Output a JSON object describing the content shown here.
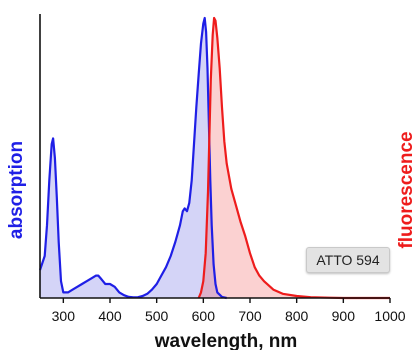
{
  "chart_data": {
    "type": "area",
    "title": "",
    "xlabel": "wavelength, nm",
    "ylabel_left": "absorption",
    "ylabel_right": "fluorescence",
    "xlim": [
      250,
      1000
    ],
    "ylim": [
      0,
      1.0
    ],
    "xticks": [
      "300",
      "400",
      "500",
      "600",
      "700",
      "800",
      "900",
      "1000"
    ],
    "grid": false,
    "series": [
      {
        "name": "absorption",
        "color": "#1f1fe6",
        "fill": "rgba(60, 60, 220, 0.22)",
        "x": [
          250,
          260,
          265,
          270,
          275,
          278,
          282,
          286,
          290,
          295,
          300,
          310,
          320,
          330,
          340,
          350,
          360,
          370,
          375,
          380,
          385,
          390,
          395,
          400,
          410,
          420,
          430,
          440,
          450,
          460,
          470,
          480,
          490,
          500,
          510,
          520,
          530,
          540,
          550,
          556,
          560,
          565,
          570,
          575,
          580,
          585,
          590,
          595,
          600,
          603,
          606,
          609,
          612,
          615,
          618,
          622,
          626,
          630,
          640,
          650
        ],
        "y": [
          0.1,
          0.15,
          0.26,
          0.42,
          0.55,
          0.57,
          0.5,
          0.36,
          0.2,
          0.06,
          0.02,
          0.02,
          0.03,
          0.04,
          0.05,
          0.06,
          0.07,
          0.08,
          0.08,
          0.07,
          0.06,
          0.05,
          0.05,
          0.05,
          0.04,
          0.02,
          0.01,
          0.004,
          0.002,
          0.003,
          0.007,
          0.015,
          0.03,
          0.05,
          0.08,
          0.11,
          0.15,
          0.2,
          0.26,
          0.31,
          0.32,
          0.31,
          0.34,
          0.42,
          0.55,
          0.68,
          0.8,
          0.91,
          0.98,
          1.0,
          0.95,
          0.82,
          0.62,
          0.42,
          0.26,
          0.12,
          0.05,
          0.02,
          0.004,
          0.0
        ]
      },
      {
        "name": "fluorescence",
        "color": "#ee1c1c",
        "fill": "rgba(238, 70, 70, 0.25)",
        "x": [
          590,
          595,
          600,
          605,
          610,
          613,
          616,
          620,
          623,
          626,
          630,
          635,
          640,
          645,
          650,
          660,
          670,
          680,
          690,
          700,
          710,
          720,
          730,
          750,
          770,
          800,
          830,
          870,
          900,
          950,
          1000
        ],
        "y": [
          0.0,
          0.02,
          0.06,
          0.16,
          0.38,
          0.58,
          0.78,
          0.94,
          1.0,
          0.99,
          0.93,
          0.82,
          0.68,
          0.56,
          0.48,
          0.39,
          0.33,
          0.27,
          0.22,
          0.16,
          0.11,
          0.08,
          0.06,
          0.03,
          0.015,
          0.007,
          0.003,
          0.001,
          0.0,
          0.0,
          0.0
        ]
      }
    ]
  },
  "annotation": {
    "label": "ATTO 594"
  },
  "colors": {
    "absorption": "#1f1fe6",
    "fluorescence": "#ee1c1c",
    "axis": "#111111"
  }
}
